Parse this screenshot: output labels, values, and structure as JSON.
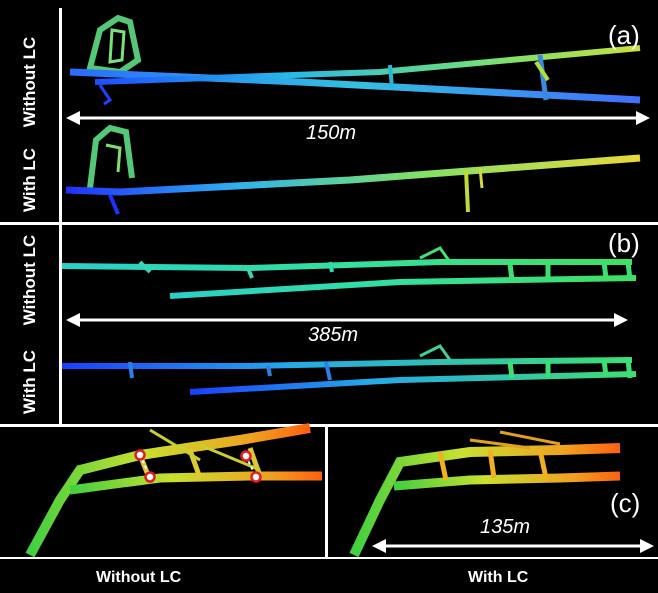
{
  "panel_a": {
    "tag": "(a)",
    "label_top": "Without LC",
    "label_bottom": "With LC",
    "scale": "150m"
  },
  "panel_b": {
    "tag": "(b)",
    "label_top": "Without LC",
    "label_bottom": "With LC",
    "scale": "385m"
  },
  "panel_c": {
    "tag": "(c)",
    "scale": "135m",
    "label_left": "Without LC",
    "label_right": "With LC"
  }
}
